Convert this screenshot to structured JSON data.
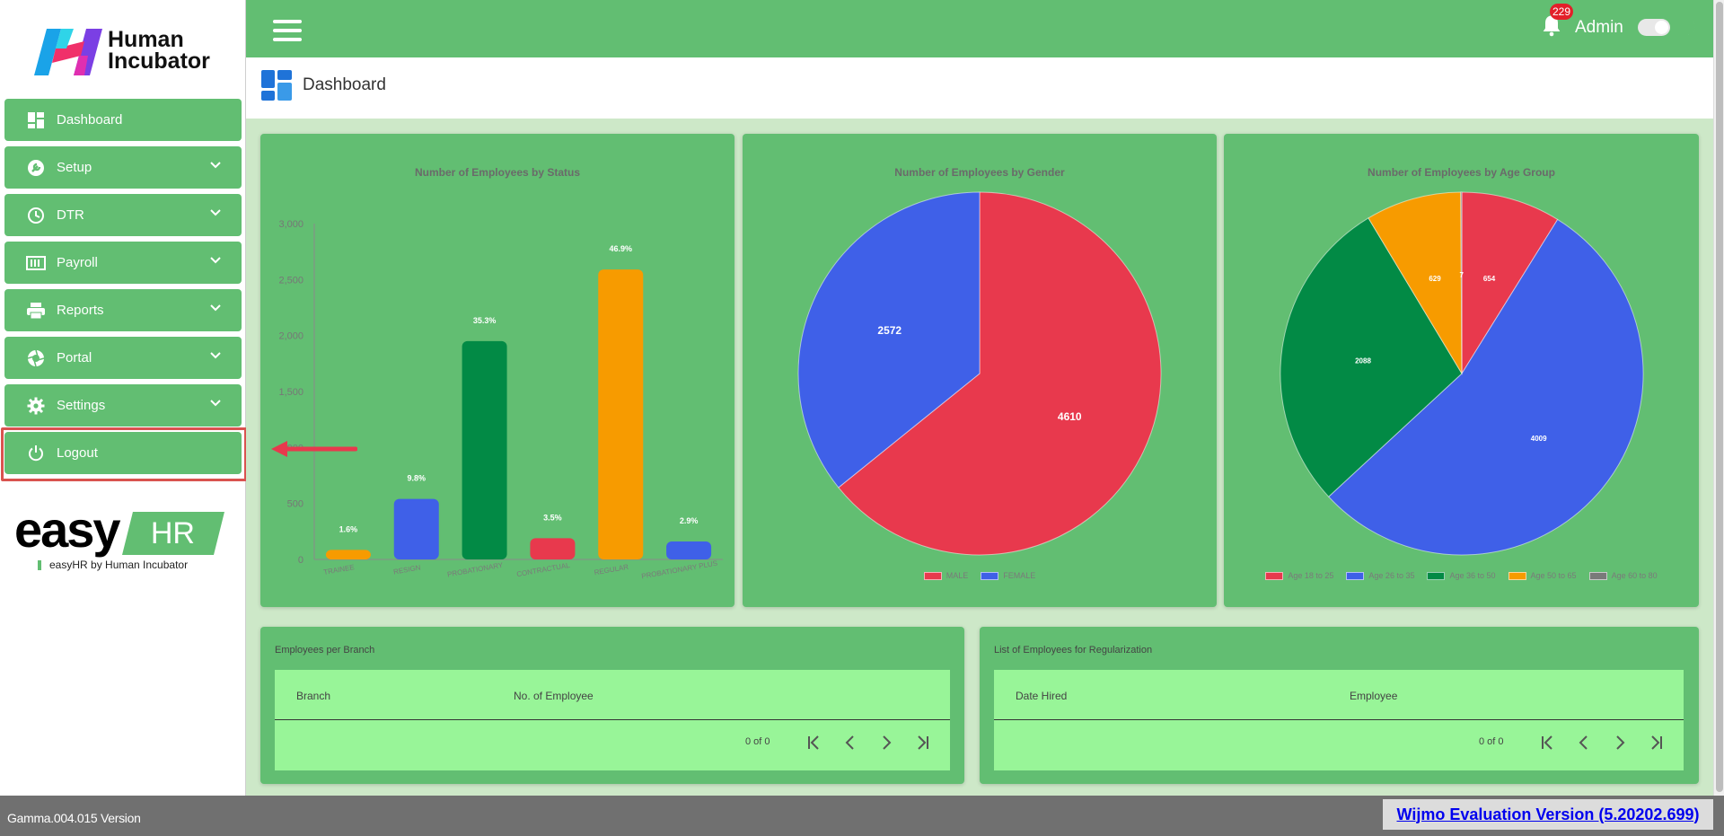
{
  "brand": {
    "line1": "Human",
    "line2": "Incubator"
  },
  "sidebar": {
    "items": [
      {
        "label": "Dashboard",
        "icon": "dashboard-icon"
      },
      {
        "label": "Setup",
        "icon": "wrench-icon"
      },
      {
        "label": "DTR",
        "icon": "clock-icon"
      },
      {
        "label": "Payroll",
        "icon": "payroll-icon"
      },
      {
        "label": "Reports",
        "icon": "printer-icon"
      },
      {
        "label": "Portal",
        "icon": "aperture-icon"
      },
      {
        "label": "Settings",
        "icon": "gear-icon"
      },
      {
        "label": "Logout",
        "icon": "power-icon"
      }
    ]
  },
  "easyhr": {
    "easy": "easy",
    "hr": "HR",
    "tagline": "easyHR by Human Incubator"
  },
  "topbar": {
    "notification_count": "229",
    "user": "Admin"
  },
  "page": {
    "title": "Dashboard"
  },
  "colors": {
    "primary": "#62be72",
    "red": "#e8394d",
    "blue": "#3f60e8",
    "green": "#028a45",
    "orange": "#f79b00",
    "gray": "#7a7a7a",
    "table_bg": "#98f598"
  },
  "chart_data": [
    {
      "type": "bar",
      "title": "Number of Employees by Status",
      "categories": [
        "TRAINEE",
        "RESIGN",
        "PROBATIONARY",
        "CONTRACTUAL",
        "REGULAR",
        "PROBATIONARY PLUS"
      ],
      "values": [
        85,
        540,
        1950,
        190,
        2590,
        160
      ],
      "labels": [
        "1.6%",
        "9.8%",
        "35.3%",
        "3.5%",
        "46.9%",
        "2.9%"
      ],
      "bar_colors": [
        "#f79b00",
        "#3f60e8",
        "#028a45",
        "#e8394d",
        "#f79b00",
        "#3f60e8"
      ],
      "ylim": [
        0,
        3000
      ],
      "yticks": [
        0,
        500,
        1000,
        1500,
        2000,
        2500,
        3000
      ],
      "ytick_labels": [
        "0",
        "500",
        "1,000",
        "1,500",
        "2,000",
        "2,500",
        "3,000"
      ]
    },
    {
      "type": "pie",
      "title": "Number of Employees by Gender",
      "labels": [
        "MALE",
        "FEMALE"
      ],
      "values": [
        4610,
        2572
      ],
      "colors": [
        "#e8394d",
        "#3f60e8"
      ]
    },
    {
      "type": "pie",
      "title": "Number of Employees by Age Group",
      "labels": [
        "Age 18 to 25",
        "Age 26 to 35",
        "Age 36 to 50",
        "Age 50 to 65",
        "Age 60 to 80"
      ],
      "values": [
        654,
        4009,
        2088,
        629,
        7
      ],
      "value_labels": [
        "654",
        "4009",
        "2088",
        "629",
        "7"
      ],
      "colors": [
        "#e8394d",
        "#3f60e8",
        "#028a45",
        "#f79b00",
        "#7a7a7a"
      ]
    }
  ],
  "branch_table": {
    "title": "Employees per Branch",
    "columns": [
      "Branch",
      "No. of Employee"
    ],
    "pager": "0 of 0"
  },
  "regularization_table": {
    "title": "List of Employees for Regularization",
    "columns": [
      "Date Hired",
      "Employee"
    ],
    "pager": "0 of 0"
  },
  "footer": {
    "version": "Gamma.004.015 Version",
    "wijmo": "Wijmo Evaluation Version (5.20202.699)"
  }
}
